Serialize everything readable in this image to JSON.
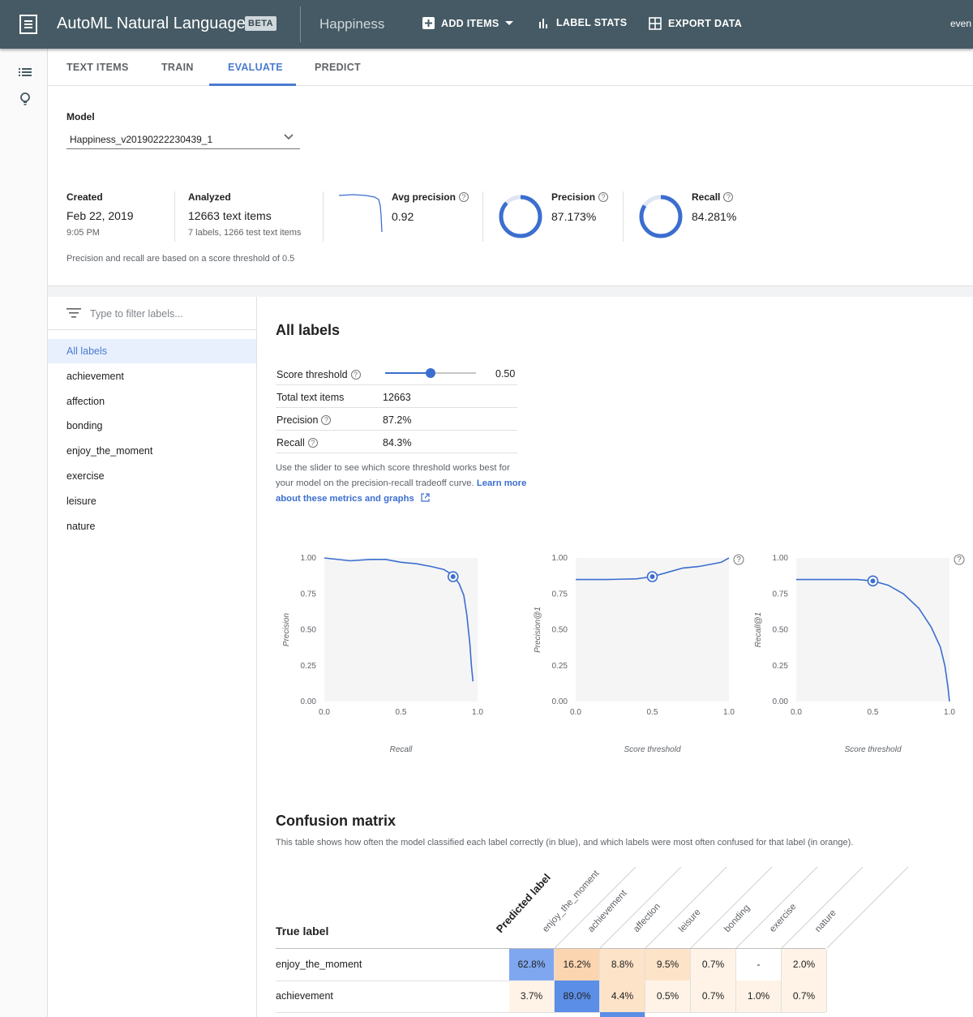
{
  "topbar": {
    "app_title": "AutoML Natural Language",
    "beta": "BETA",
    "dataset": "Happiness",
    "add_items": "ADD ITEMS",
    "label_stats": "LABEL STATS",
    "export_data": "EXPORT DATA",
    "user": "even"
  },
  "tabs": [
    "TEXT ITEMS",
    "TRAIN",
    "EVALUATE",
    "PREDICT"
  ],
  "model": {
    "label": "Model",
    "selected": "Happiness_v20190222230439_1"
  },
  "summary": {
    "created_label": "Created",
    "created_date": "Feb 22, 2019",
    "created_time": "9:05 PM",
    "analyzed_label": "Analyzed",
    "analyzed_value": "12663 text items",
    "analyzed_sub": "7 labels, 1266 test text items",
    "avg_precision_label": "Avg precision",
    "avg_precision_value": "0.92",
    "precision_label": "Precision",
    "precision_value": "87.173%",
    "precision_ratio": 0.87173,
    "recall_label": "Recall",
    "recall_value": "84.281%",
    "recall_ratio": 0.84281,
    "note": "Precision and recall are based on a score threshold of 0.5"
  },
  "filter": {
    "placeholder": "Type to filter labels..."
  },
  "labels": [
    "All labels",
    "achievement",
    "affection",
    "bonding",
    "enjoy_the_moment",
    "exercise",
    "leisure",
    "nature"
  ],
  "detail": {
    "title": "All labels",
    "score_threshold_label": "Score threshold",
    "score_threshold_value": "0.50",
    "score_threshold": 0.5,
    "total_label": "Total text items",
    "total_value": "12663",
    "precision_label": "Precision",
    "precision_value": "87.2%",
    "recall_label": "Recall",
    "recall_value": "84.3%",
    "hint": "Use the slider to see which score threshold works best for your model on the precision-recall tradeoff curve.",
    "hint_link": "Learn more about these metrics and graphs"
  },
  "chart_data": [
    {
      "type": "line",
      "xlabel": "Recall",
      "ylabel": "Precision",
      "xticks": [
        "0.0",
        "0.5",
        "1.0"
      ],
      "yticks": [
        "0.00",
        "0.25",
        "0.50",
        "0.75",
        "1.00"
      ],
      "xlim": [
        0,
        1
      ],
      "ylim": [
        0,
        1
      ],
      "x": [
        0.0,
        0.17,
        0.3,
        0.4,
        0.5,
        0.6,
        0.7,
        0.78,
        0.84,
        0.88,
        0.91,
        0.93,
        0.95,
        0.96,
        0.97
      ],
      "y": [
        1.0,
        0.98,
        0.99,
        0.99,
        0.97,
        0.96,
        0.94,
        0.92,
        0.88,
        0.82,
        0.74,
        0.6,
        0.4,
        0.25,
        0.14
      ],
      "marker": {
        "x": 0.84,
        "y": 0.87
      }
    },
    {
      "type": "line",
      "xlabel": "Score threshold",
      "ylabel": "Precision@1",
      "xticks": [
        "0.0",
        "0.5",
        "1.0"
      ],
      "yticks": [
        "0.00",
        "0.25",
        "0.50",
        "0.75",
        "1.00"
      ],
      "xlim": [
        0,
        1
      ],
      "ylim": [
        0,
        1
      ],
      "x": [
        0.0,
        0.2,
        0.4,
        0.5,
        0.6,
        0.7,
        0.8,
        0.9,
        0.95,
        1.0
      ],
      "y": [
        0.85,
        0.85,
        0.855,
        0.87,
        0.9,
        0.93,
        0.94,
        0.96,
        0.97,
        1.0
      ],
      "marker": {
        "x": 0.5,
        "y": 0.87
      }
    },
    {
      "type": "line",
      "xlabel": "Score threshold",
      "ylabel": "Recall@1",
      "xticks": [
        "0.0",
        "0.5",
        "1.0"
      ],
      "yticks": [
        "0.00",
        "0.25",
        "0.50",
        "0.75",
        "1.00"
      ],
      "xlim": [
        0,
        1
      ],
      "ylim": [
        0,
        1
      ],
      "x": [
        0.0,
        0.2,
        0.4,
        0.5,
        0.6,
        0.7,
        0.8,
        0.88,
        0.94,
        0.97,
        0.99,
        1.0
      ],
      "y": [
        0.85,
        0.85,
        0.85,
        0.84,
        0.81,
        0.75,
        0.65,
        0.52,
        0.38,
        0.25,
        0.1,
        0.0
      ],
      "marker": {
        "x": 0.5,
        "y": 0.84
      }
    }
  ],
  "confusion": {
    "title": "Confusion matrix",
    "description": "This table shows how often the model classified each label correctly (in blue), and which labels were most often confused for that label (in orange).",
    "true_label": "True label",
    "predicted_label": "Predicted label",
    "columns": [
      "enjoy_the_moment",
      "achievement",
      "affection",
      "leisure",
      "bonding",
      "exercise",
      "nature"
    ],
    "rows": [
      {
        "label": "enjoy_the_moment",
        "cells": [
          "62.8%",
          "16.2%",
          "8.8%",
          "9.5%",
          "0.7%",
          "-",
          "2.0%"
        ]
      },
      {
        "label": "achievement",
        "cells": [
          "3.7%",
          "89.0%",
          "4.4%",
          "0.5%",
          "0.7%",
          "1.0%",
          "0.7%"
        ]
      }
    ],
    "colors": {
      "diag": "#7fa7ef",
      "diag_strong": "#5b8ee6",
      "orange_strong": "#fbd5b0",
      "orange_mid": "#fde3c8",
      "orange_light": "#fef3e6"
    }
  }
}
